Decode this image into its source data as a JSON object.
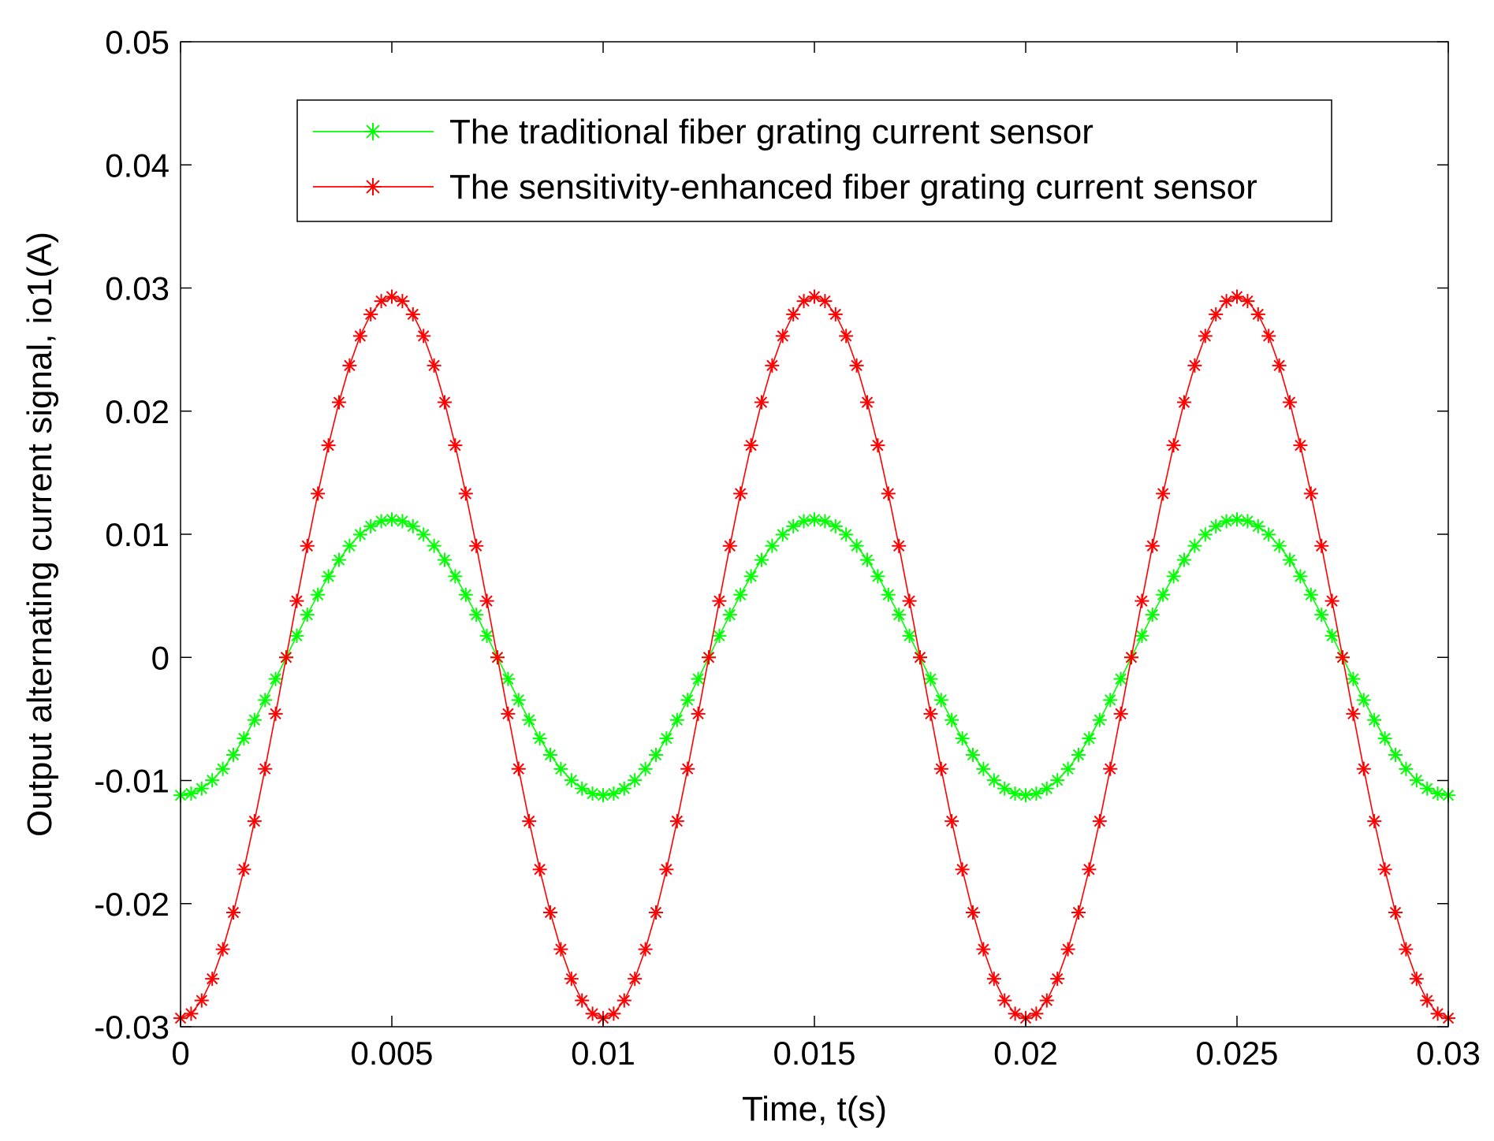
{
  "chart_data": {
    "type": "line",
    "title": "",
    "xlabel": "Time, t(s)",
    "ylabel": "Output alternating current signal, io1(A)",
    "xlim": [
      0,
      0.03
    ],
    "ylim": [
      -0.03,
      0.05
    ],
    "xticks": [
      "0",
      "0.005",
      "0.01",
      "0.015",
      "0.02",
      "0.025",
      "0.03"
    ],
    "yticks": [
      "-0.03",
      "-0.02",
      "-0.01",
      "0",
      "0.01",
      "0.02",
      "0.03",
      "0.04",
      "0.05"
    ],
    "grid": false,
    "legend_position": "top",
    "x_sampling": {
      "start": 0,
      "end": 0.03,
      "step": 0.00025
    },
    "series": [
      {
        "name": "The traditional fiber grating current sensor",
        "color": "#00ff00",
        "marker": "asterisk",
        "waveform": "cosine",
        "amplitude": 0.0112,
        "period": 0.01,
        "peak_at": 0.005
      },
      {
        "name": "The sensitivity-enhanced fiber grating current sensor",
        "color": "#ff0000",
        "marker": "asterisk",
        "waveform": "cosine",
        "amplitude": 0.0293,
        "period": 0.01,
        "peak_at": 0.005
      }
    ]
  }
}
